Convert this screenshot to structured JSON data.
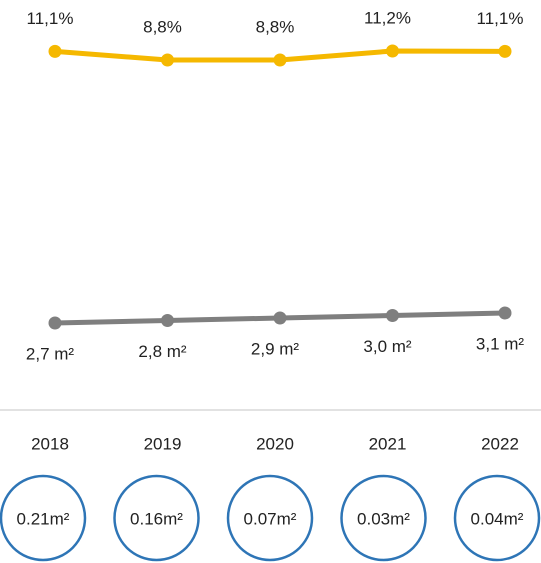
{
  "chart_data": {
    "type": "line",
    "categories": [
      "2018",
      "2019",
      "2020",
      "2021",
      "2022"
    ],
    "series": [
      {
        "color": "#f5b800",
        "values": [
          11.1,
          8.8,
          8.8,
          11.2,
          11.1
        ],
        "value_labels": [
          "11,1%",
          "8,8%",
          "8,8%",
          "11,2%",
          "11,1%"
        ]
      },
      {
        "color": "#7f7f7f",
        "values": [
          2.7,
          2.8,
          2.9,
          3.0,
          3.1
        ],
        "value_labels": [
          "2,7 m²",
          "2,8 m²",
          "2,9 m²",
          "3,0 m²",
          "3,1 m²"
        ]
      }
    ],
    "circles": {
      "color": "#2e75b6",
      "values": [
        0.21,
        0.16,
        0.07,
        0.03,
        0.04
      ],
      "value_labels": [
        "0.21m²",
        "0.16m²",
        "0.07m²",
        "0.03m²",
        "0.04m²"
      ]
    }
  }
}
